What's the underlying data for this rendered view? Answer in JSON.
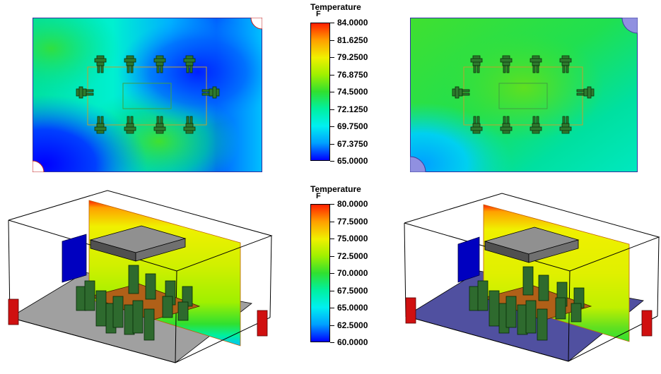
{
  "top_legend": {
    "title": "Temperature",
    "unit": "F",
    "ticks": [
      "84.0000",
      "81.6250",
      "79.2500",
      "76.8750",
      "74.5000",
      "72.1250",
      "69.7500",
      "67.3750",
      "65.0000"
    ],
    "min": 65,
    "max": 84
  },
  "bottom_legend": {
    "title": "Temperature",
    "unit": "F",
    "ticks": [
      "80.0000",
      "77.5000",
      "75.0000",
      "72.5000",
      "70.0000",
      "67.5000",
      "65.0000",
      "62.5000",
      "60.0000"
    ],
    "min": 60,
    "max": 80
  },
  "colormap": [
    "#0000ff",
    "#00a0ff",
    "#00f0f0",
    "#00f0a0",
    "#30e030",
    "#a0f000",
    "#f0f000",
    "#ffa000",
    "#ff2000"
  ]
}
